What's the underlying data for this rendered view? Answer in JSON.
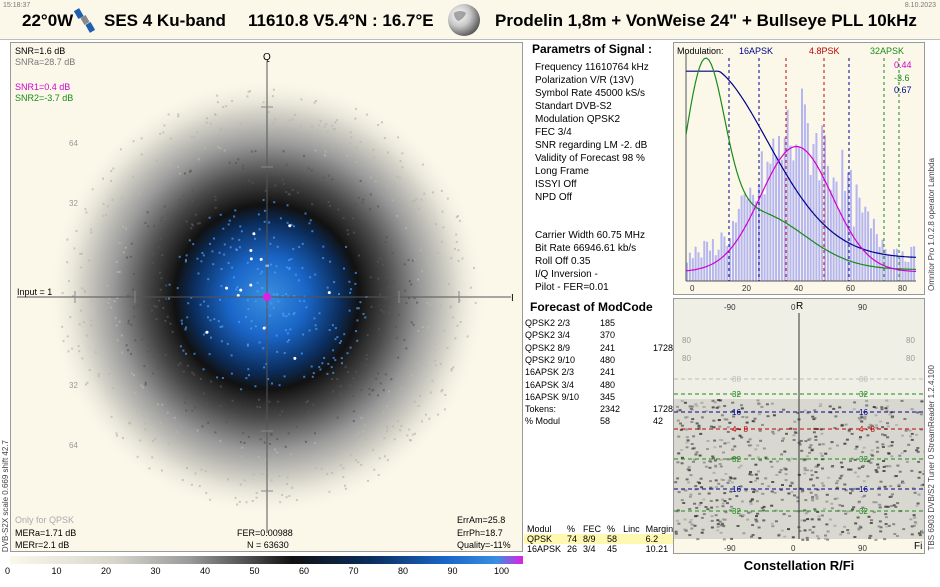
{
  "header": {
    "time": "15:18:37",
    "date": "8.10.2023",
    "orbital": "22°0W",
    "satellite": "SES 4 Ku-band",
    "tp": "11610.8  V5.4°N : 16.7°E",
    "dish": "Prodelin 1,8m + VonWeise 24\" + Bullseye PLL 10kHz"
  },
  "constellation": {
    "snr": "SNR=1.6 dB",
    "snra": "SNRa=28.7 dB",
    "snr1": "SNR1=0.4 dB",
    "snr2": "SNR2=-3.7 dB",
    "axis_q": "Q",
    "axis_i": "I",
    "input": "Input = 1",
    "only_for": "Only for QPSK",
    "mera": "MERa=1.71 dB",
    "merr": "MERr=2.1 dB",
    "fer": "FER=0.00988",
    "n": "N = 63630",
    "erram": "ErrAm=25.8",
    "errph": "ErrPh=18.7",
    "quality": "Quality=-11%",
    "side": "DVB-S2X scale 0.669 shift 42.7",
    "grid_labels": [
      "64",
      "32",
      "32",
      "64"
    ],
    "colorbar_ticks": [
      "0",
      "10",
      "20",
      "30",
      "40",
      "50",
      "60",
      "70",
      "80",
      "90",
      "100"
    ]
  },
  "params": {
    "heading": "Parametrs of Signal :",
    "lines": [
      "Frequency  11610764 kHz",
      "Polarization  V/R (13V)",
      "Symbol Rate  45000 kS/s",
      "Standart  DVB-S2",
      "Modulation  QPSK2",
      "FEC  3/4",
      "SNR regarding LM  -2. dB",
      "Validity of Forecast  98 %",
      "Long  Frame",
      "ISSYI  Off",
      "NPD   Off"
    ],
    "lines2": [
      "Carrier Width  60.75 MHz",
      "Bit Rate  66946.61 kb/s",
      "Roll Off  0.35",
      "I/Q Inversion    -",
      "Pilot    -        FER=0.01"
    ]
  },
  "forecast": {
    "heading": "Forecast of ModCode",
    "rows": [
      [
        "QPSK2 2/3",
        "185",
        ""
      ],
      [
        "QPSK2 3/4",
        "370",
        ""
      ],
      [
        "QPSK2 8/9",
        "241",
        "1728"
      ],
      [
        "QPSK2 9/10",
        "480",
        ""
      ],
      [
        "16APSK 2/3",
        "241",
        ""
      ],
      [
        "16APSK 3/4",
        "480",
        ""
      ],
      [
        "16APSK 9/10",
        "345",
        ""
      ],
      [
        "Tokens:",
        "2342",
        "1728"
      ],
      [
        "% Modul",
        "58",
        "42"
      ]
    ],
    "table_headers": [
      "Modul",
      "%",
      "FEC",
      "%",
      "Linc",
      "Margin"
    ],
    "table_rows": [
      [
        "QPSK",
        "74",
        "8/9",
        "58",
        "",
        "6.2"
      ],
      [
        "16APSK",
        "26",
        "3/4",
        "45",
        "",
        "10.21"
      ]
    ]
  },
  "histogram": {
    "modulation_label": "Modulation:",
    "apsk16": "16APSK",
    "psk8": "4.8PSK",
    "apsk32": "32APSK",
    "v1": "0.44",
    "v2": "-3.6",
    "v3": "0.67",
    "x_ticks": [
      "0",
      "20",
      "40",
      "60",
      "80"
    ],
    "side": "Omnitor Pro 1.0.2.8 operator Lambda"
  },
  "rfi": {
    "r": "R",
    "fi": "Fi",
    "top_ticks": [
      "-90",
      "0",
      "90"
    ],
    "bottom_ticks": [
      "-90",
      "0",
      "90"
    ],
    "left_vals": [
      "80",
      "80",
      "32",
      "16",
      "4 - 8",
      "32",
      "16",
      "32"
    ],
    "right_vals": [
      "80",
      "80",
      "32",
      "16",
      "4 - 8",
      "32",
      "16",
      "32"
    ],
    "footer": "Constellation  R/Fi",
    "side": "TBS 6903 DVB/S2 Tuner 0    StreamReader 1.2.4.100"
  },
  "colors": {
    "blue": "#1f6fd1",
    "magenta": "#d000d0",
    "green": "#1a8a1a",
    "navy": "#00008b",
    "red": "#c00000",
    "lav": "#b5b5f0"
  }
}
